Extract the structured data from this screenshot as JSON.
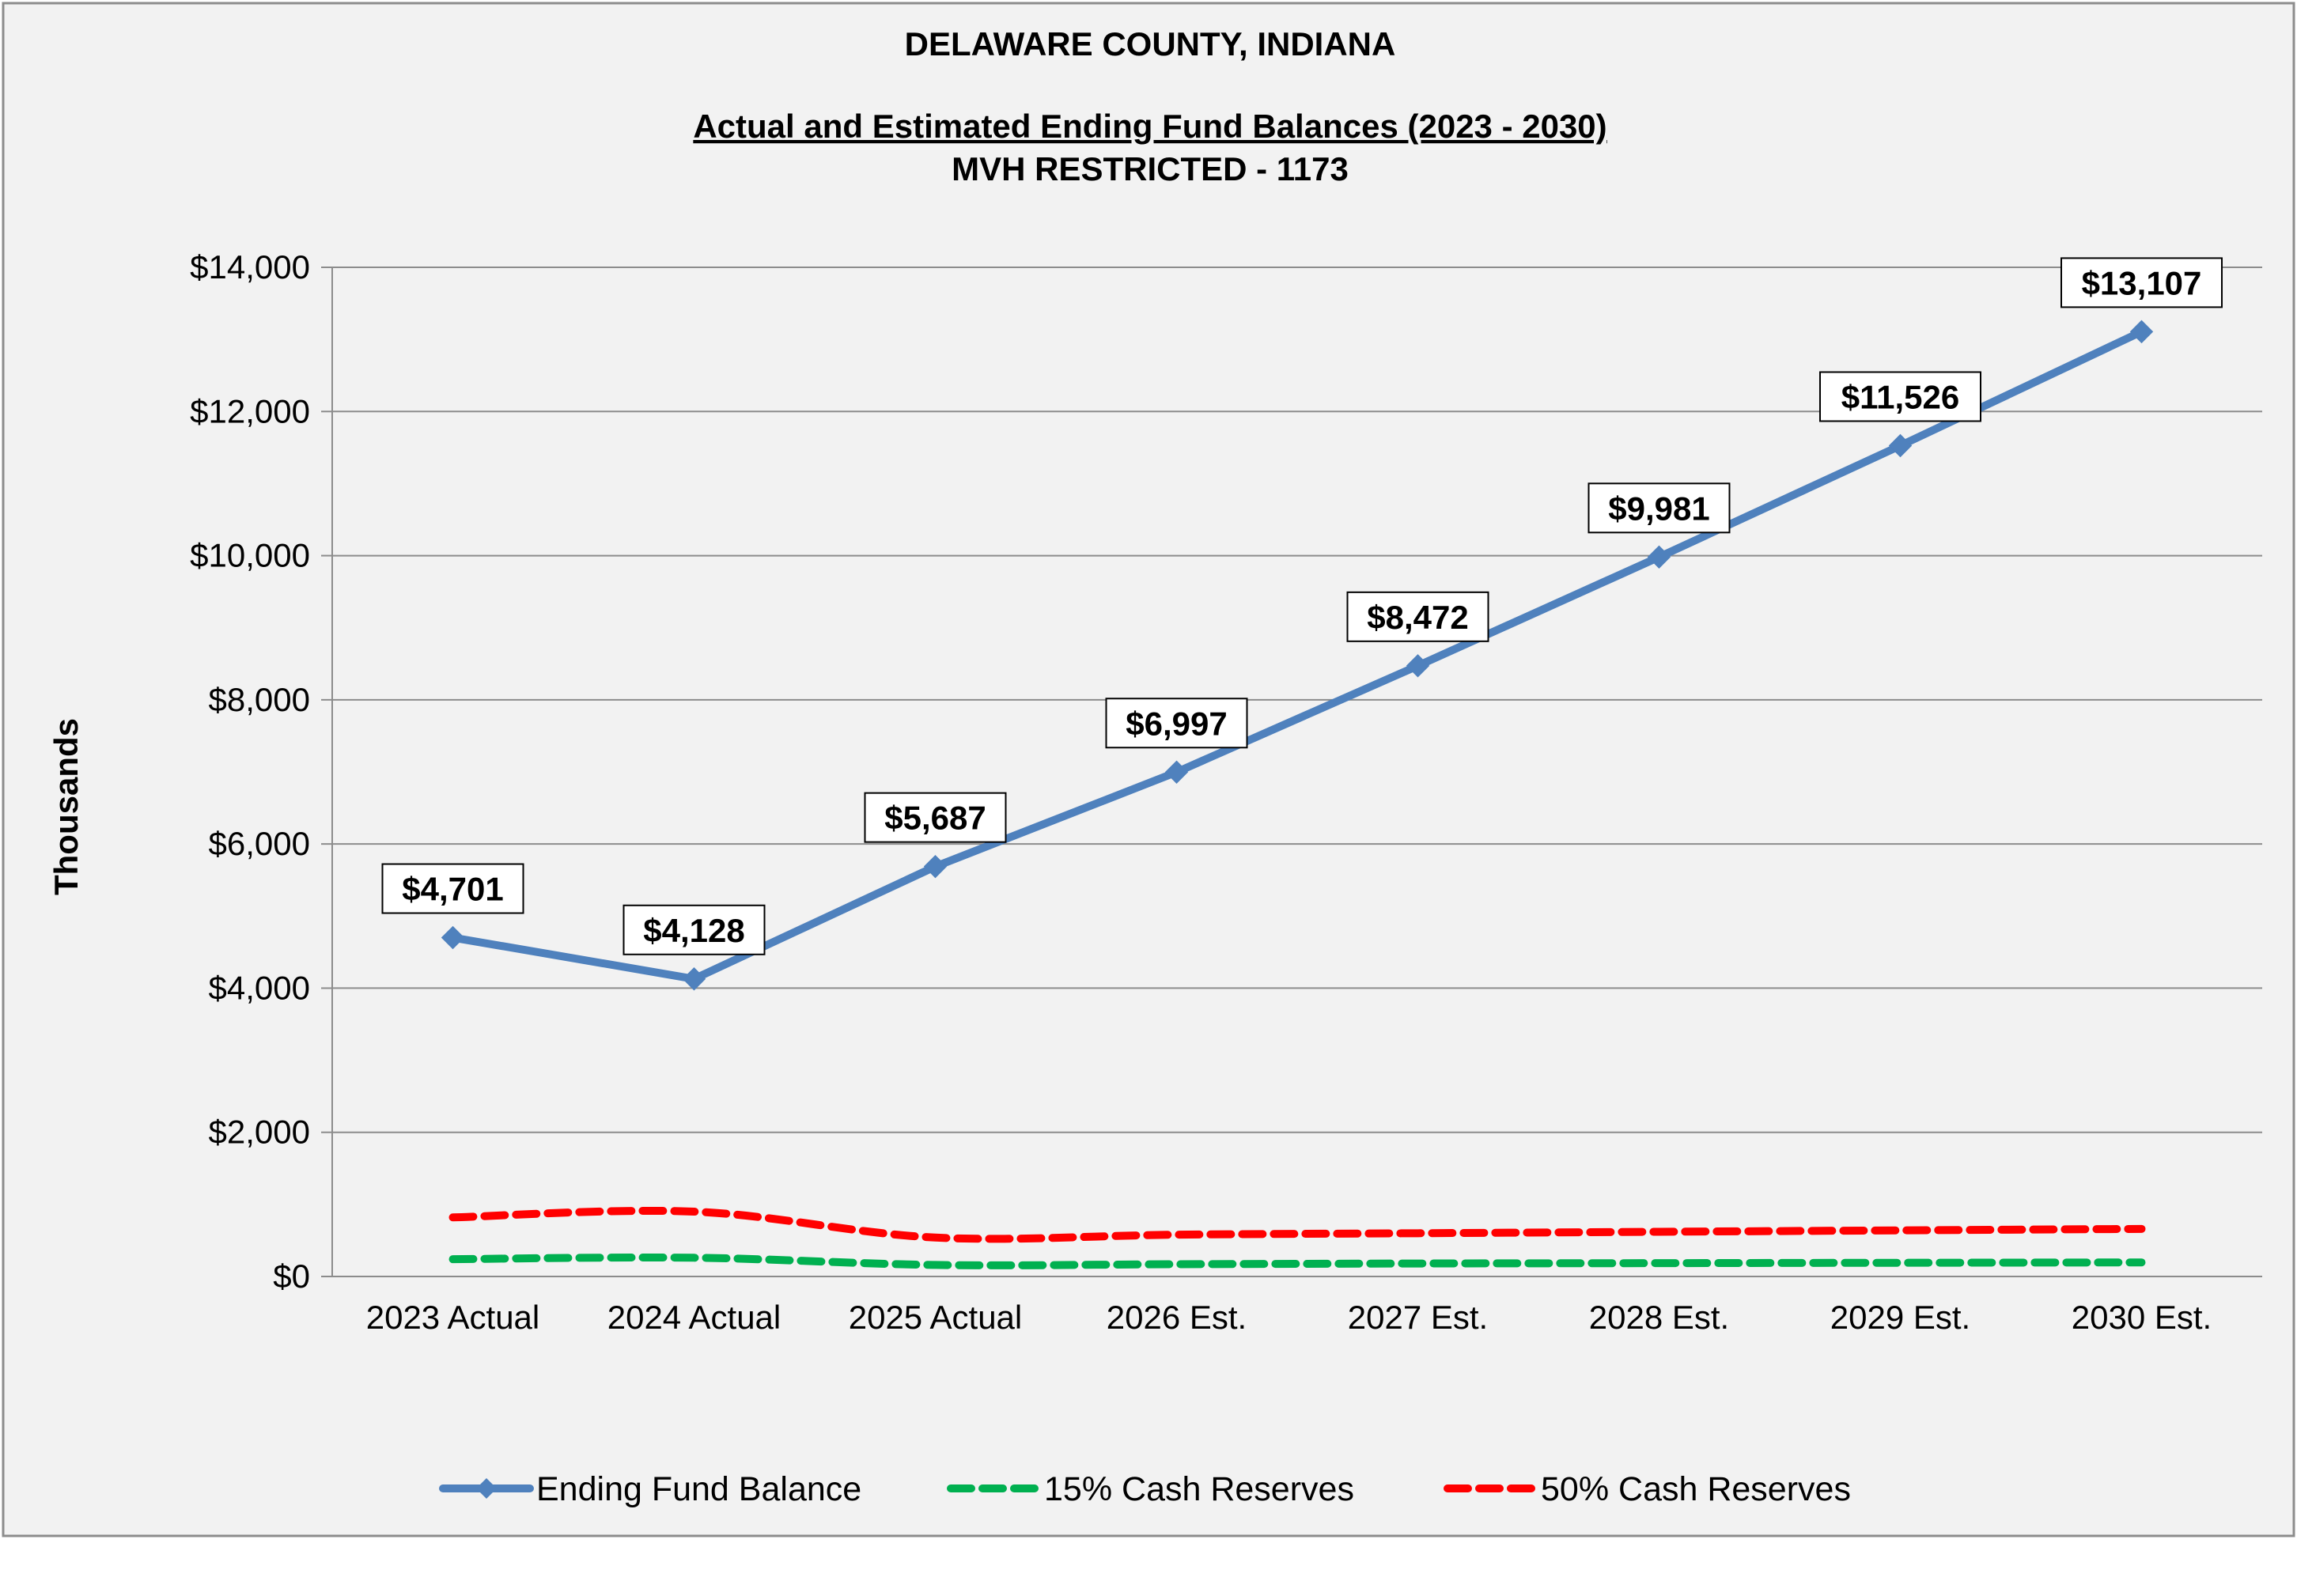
{
  "chart_data": {
    "type": "line",
    "title": "DELAWARE COUNTY, INDIANA",
    "subtitle": "Actual and Estimated Ending Fund Balances (2023 - 2030)",
    "subtitle2": "MVH RESTRICTED - 1173",
    "ylabel": "Thousands",
    "xlabel": "",
    "categories": [
      "2023 Actual",
      "2024 Actual",
      "2025 Actual",
      "2026 Est.",
      "2027 Est.",
      "2028 Est.",
      "2029 Est.",
      "2030 Est."
    ],
    "ylim": [
      0,
      14000
    ],
    "yticks": [
      0,
      2000,
      4000,
      6000,
      8000,
      10000,
      12000,
      14000
    ],
    "ytick_labels": [
      "$0",
      "$2,000",
      "$4,000",
      "$6,000",
      "$8,000",
      "$10,000",
      "$12,000",
      "$14,000"
    ],
    "grid": true,
    "legend_position": "bottom",
    "series": [
      {
        "name": "Ending Fund Balance",
        "values": [
          4701,
          4128,
          5687,
          6997,
          8472,
          9981,
          11526,
          13107
        ],
        "data_labels": [
          "$4,701",
          "$4,128",
          "$5,687",
          "$6,997",
          "$8,472",
          "$9,981",
          "$11,526",
          "$13,107"
        ],
        "color": "#4F81BD",
        "style": "solid",
        "marker": "diamond"
      },
      {
        "name": "15% Cash Reserves",
        "values": [
          240,
          260,
          160,
          170,
          180,
          185,
          190,
          195
        ],
        "color": "#00B050",
        "style": "dashed"
      },
      {
        "name": "50% Cash Reserves",
        "values": [
          820,
          900,
          540,
          580,
          600,
          620,
          640,
          660
        ],
        "color": "#FF0000",
        "style": "dashed"
      }
    ]
  }
}
